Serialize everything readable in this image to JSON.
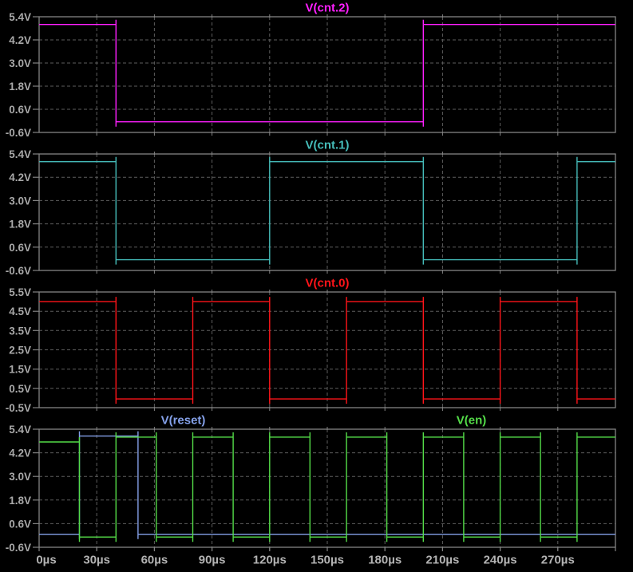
{
  "window": {
    "background": "#000000"
  },
  "axis": {
    "unit": "µs",
    "xlim": [
      0,
      300
    ],
    "x_grid_step": 30,
    "x_tick_labels": [
      "0µs",
      "30µs",
      "60µs",
      "90µs",
      "120µs",
      "150µs",
      "180µs",
      "210µs",
      "240µs",
      "270µs"
    ],
    "grid_color": "#5e5e5e",
    "border_color": "#848484",
    "y_label_color": "#a9a9a9",
    "x_label_color": "#b3b3b3",
    "grid_on": true
  },
  "chart_data": [
    {
      "type": "line",
      "title": "V(cnt.2)",
      "ylim": [
        -0.6,
        5.4
      ],
      "y_ticks": [
        {
          "v": 5.4,
          "label": "5.4V"
        },
        {
          "v": 4.2,
          "label": "4.2V"
        },
        {
          "v": 3.0,
          "label": "3.0V"
        },
        {
          "v": 1.8,
          "label": "1.8V"
        },
        {
          "v": 0.6,
          "label": "0.6V"
        },
        {
          "v": -0.6,
          "label": "-0.6V"
        }
      ],
      "series": [
        {
          "name": "V(cnt.2)",
          "color": "#ff1fff",
          "label_x_frac": 0.5,
          "step_points": [
            [
              0,
              5.0
            ],
            [
              40,
              -0.05
            ],
            [
              200,
              5.0
            ]
          ],
          "end_time": 300
        }
      ]
    },
    {
      "type": "line",
      "title": "V(cnt.1)",
      "ylim": [
        -0.6,
        5.4
      ],
      "y_ticks": [
        {
          "v": 5.4,
          "label": "5.4V"
        },
        {
          "v": 4.2,
          "label": "4.2V"
        },
        {
          "v": 3.0,
          "label": "3.0V"
        },
        {
          "v": 1.8,
          "label": "1.8V"
        },
        {
          "v": 0.6,
          "label": "0.6V"
        },
        {
          "v": -0.6,
          "label": "-0.6V"
        }
      ],
      "series": [
        {
          "name": "V(cnt.1)",
          "color": "#45bcb9",
          "label_x_frac": 0.5,
          "step_points": [
            [
              0,
              5.0
            ],
            [
              40,
              -0.05
            ],
            [
              120,
              5.0
            ],
            [
              200,
              -0.05
            ],
            [
              280,
              5.0
            ]
          ],
          "end_time": 300
        }
      ]
    },
    {
      "type": "line",
      "title": "V(cnt.0)",
      "ylim": [
        -0.5,
        5.5
      ],
      "y_ticks": [
        {
          "v": 5.5,
          "label": "5.5V"
        },
        {
          "v": 4.5,
          "label": "4.5V"
        },
        {
          "v": 3.5,
          "label": "3.5V"
        },
        {
          "v": 2.5,
          "label": "2.5V"
        },
        {
          "v": 1.5,
          "label": "1.5V"
        },
        {
          "v": 0.5,
          "label": "0.5V"
        },
        {
          "v": -0.5,
          "label": "-0.5V"
        }
      ],
      "series": [
        {
          "name": "V(cnt.0)",
          "color": "#ff1419",
          "label_x_frac": 0.5,
          "step_points": [
            [
              0,
              5.0
            ],
            [
              40,
              -0.05
            ],
            [
              80,
              5.0
            ],
            [
              120,
              -0.05
            ],
            [
              160,
              5.0
            ],
            [
              200,
              -0.05
            ],
            [
              240,
              5.0
            ],
            [
              280,
              -0.05
            ]
          ],
          "end_time": 300
        }
      ]
    },
    {
      "type": "line",
      "title": "V(reset) / V(en)",
      "ylim": [
        -0.6,
        5.4
      ],
      "y_ticks": [
        {
          "v": 5.4,
          "label": "5.4V"
        },
        {
          "v": 4.2,
          "label": "4.2V"
        },
        {
          "v": 3.0,
          "label": "3.0V"
        },
        {
          "v": 1.8,
          "label": "1.8V"
        },
        {
          "v": 0.6,
          "label": "0.6V"
        },
        {
          "v": -0.6,
          "label": "-0.6V"
        }
      ],
      "series": [
        {
          "name": "V(reset)",
          "color": "#84a0e8",
          "label_x_frac": 0.25,
          "step_points": [
            [
              0,
              0.06
            ],
            [
              21,
              5.05
            ],
            [
              51.5,
              0.06
            ]
          ],
          "end_time": 300
        },
        {
          "name": "V(en)",
          "color": "#54dc48",
          "label_x_frac": 0.75,
          "step_points": [
            [
              0,
              4.75
            ],
            [
              21,
              -0.08
            ],
            [
              40,
              5.0
            ],
            [
              61,
              -0.08
            ],
            [
              80,
              5.0
            ],
            [
              101,
              -0.08
            ],
            [
              120,
              5.0
            ],
            [
              141,
              -0.08
            ],
            [
              160,
              5.0
            ],
            [
              181,
              -0.08
            ],
            [
              200,
              5.0
            ],
            [
              221,
              -0.08
            ],
            [
              240,
              5.0
            ],
            [
              261,
              -0.08
            ],
            [
              280,
              5.0
            ]
          ],
          "end_time": 300
        }
      ]
    }
  ]
}
